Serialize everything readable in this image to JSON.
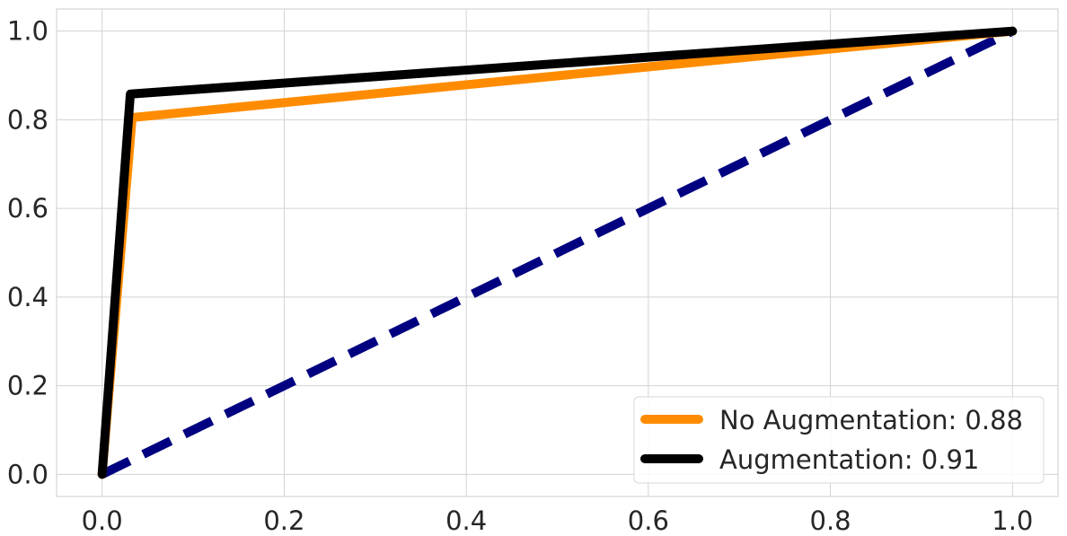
{
  "chart_data": {
    "type": "line",
    "title": "",
    "xlabel": "",
    "ylabel": "",
    "xlim": [
      -0.05,
      1.05
    ],
    "ylim": [
      -0.05,
      1.05
    ],
    "grid": true,
    "legend_position": "bottom-right",
    "x_ticks": [
      "0.0",
      "0.2",
      "0.4",
      "0.6",
      "0.8",
      "1.0"
    ],
    "y_ticks": [
      "0.0",
      "0.2",
      "0.4",
      "0.6",
      "0.8",
      "1.0"
    ],
    "series": [
      {
        "name": "No Augmentation: 0.88",
        "color": "#ff8c00",
        "style": "solid",
        "x": [
          0.0,
          0.033,
          1.0
        ],
        "y": [
          0.0,
          0.805,
          1.0
        ]
      },
      {
        "name": "Augmentation: 0.91",
        "color": "#000000",
        "style": "solid",
        "x": [
          0.0,
          0.031,
          1.0
        ],
        "y": [
          0.0,
          0.858,
          1.0
        ]
      },
      {
        "color": "#000080",
        "style": "dashed",
        "x": [
          0.0,
          1.0
        ],
        "y": [
          0.0,
          1.0
        ]
      }
    ]
  }
}
